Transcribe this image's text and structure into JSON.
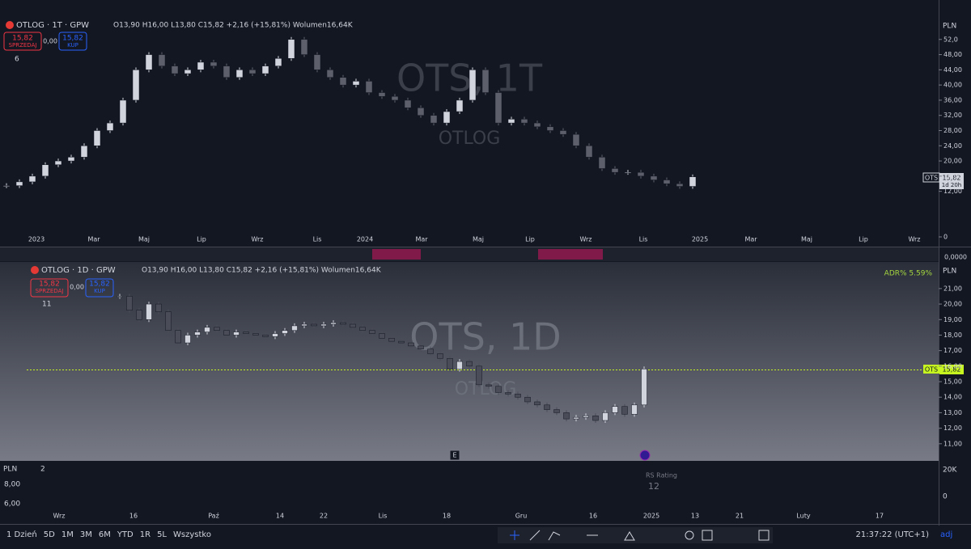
{
  "ui": {
    "top": {
      "symbol": "OTLOG · 1T · GPW",
      "ohlc": "O13,90 H16,00 L13,80 C15,82 +2,16 (+15,81%) Wolumen16,64K",
      "sell_price": "15,82",
      "sell_label": "SPRZEDAJ",
      "spread": "0,00",
      "buy_price": "15,82",
      "buy_label": "KUP",
      "indicators": "6",
      "watermark": "OTS, 1T",
      "watermark_sub": "OTLOG",
      "currency": "PLN",
      "last_symbol": "OTS",
      "last_price": "15,82",
      "countdown": "1d 20h",
      "strip_value": "0,0000",
      "x_labels": [
        "2023",
        "Mar",
        "Maj",
        "Lip",
        "Wrz",
        "Lis",
        "2024",
        "Mar",
        "Maj",
        "Lip",
        "Wrz",
        "Lis",
        "2025",
        "Mar",
        "Maj",
        "Lip",
        "Wrz"
      ]
    },
    "bottom": {
      "symbol": "OTLOG · 1D · GPW",
      "ohlc": "O13,90 H16,00 L13,80 C15,82 +2,16 (+15,81%) Wolumen16,64K",
      "sell_price": "15,82",
      "sell_label": "SPRZEDAJ",
      "spread": "0,00",
      "buy_price": "15,82",
      "buy_label": "KUP",
      "indicators": "11",
      "watermark": "OTS, 1D",
      "watermark_sub": "OTLOG",
      "currency": "PLN",
      "adr": "ADR% 5.59%",
      "last_symbol": "OTS",
      "last_price": "15,82",
      "earnings": "E",
      "x_labels": [
        "Wrz",
        "16",
        "Paź",
        "14",
        "22",
        "Lis",
        "18",
        "Gru",
        "16",
        "2025",
        "13",
        "21",
        "Luty",
        "17"
      ]
    },
    "lower": {
      "currency": "PLN",
      "count": "2",
      "rs_title": "RS Rating",
      "rs_value": "12",
      "vol_top": "20K",
      "vol_zero": "0",
      "left_top": "8,00",
      "left_bottom": "6,00"
    },
    "toolbar": {
      "ranges": [
        "1 Dzień",
        "5D",
        "1M",
        "3M",
        "6M",
        "YTD",
        "1R",
        "5L",
        "Wszystko"
      ],
      "clock": "21:37:22 (UTC+1)",
      "adj": "adj"
    }
  },
  "chart_data": [
    {
      "type": "candlestick",
      "up_color": "#d1d4dc",
      "down_color": "#5d606b",
      "values": [
        13.5,
        14.5,
        16,
        19,
        20,
        21,
        24,
        28,
        30,
        36,
        44,
        48,
        45,
        43,
        44,
        46,
        45,
        42,
        44,
        43,
        45,
        47,
        52,
        48,
        44,
        42,
        40,
        41,
        38,
        37,
        36,
        34,
        32,
        30,
        33,
        36,
        44,
        38,
        30,
        31,
        30,
        29,
        28,
        27,
        24,
        21,
        18,
        17,
        17,
        16,
        15,
        14,
        13.3,
        15.82
      ],
      "ylim": [
        0,
        57.7
      ],
      "yticks": [
        {
          "value": 52,
          "label": "52,0"
        },
        {
          "value": 48,
          "label": "48,00"
        },
        {
          "value": 44,
          "label": "44,00"
        },
        {
          "value": 40,
          "label": "40,00"
        },
        {
          "value": 36,
          "label": "36,00"
        },
        {
          "value": 32,
          "label": "32,00"
        },
        {
          "value": 28,
          "label": "28,00"
        },
        {
          "value": 24,
          "label": "24,00"
        },
        {
          "value": 20,
          "label": "20,00"
        },
        {
          "value": 16,
          "label": "16,00"
        },
        {
          "value": 12,
          "label": "12,00"
        },
        0
      ]
    },
    {
      "type": "candlestick",
      "up_color": "#d1d4dc",
      "down_color": "#4a4d57",
      "values": [
        20.5,
        19.6,
        19.0,
        20.0,
        19.5,
        18.3,
        17.5,
        18.0,
        18.2,
        18.5,
        18.3,
        18.0,
        18.2,
        18.1,
        18.0,
        17.9,
        18.1,
        18.3,
        18.6,
        18.7,
        18.6,
        18.7,
        18.8,
        18.7,
        18.5,
        18.3,
        18.1,
        17.8,
        17.6,
        17.5,
        17.3,
        17.1,
        16.8,
        16.5,
        15.8,
        16.3,
        16.0,
        14.8,
        14.7,
        14.3,
        14.2,
        14.0,
        13.7,
        13.5,
        13.2,
        13.0,
        12.6,
        12.7,
        12.8,
        12.5,
        13.0,
        13.4,
        12.9,
        13.5,
        15.82
      ],
      "ylim": [
        10,
        22.4
      ],
      "yticks": [
        {
          "value": 21,
          "label": "21,00"
        },
        {
          "value": 20,
          "label": "20,00"
        },
        {
          "value": 19,
          "label": "19,00"
        },
        {
          "value": 18,
          "label": "18,00"
        },
        {
          "value": 17,
          "label": "17,00"
        },
        {
          "value": 16,
          "label": "16,00"
        },
        {
          "value": 15,
          "label": "15,00"
        },
        {
          "value": 14,
          "label": "14,00"
        },
        {
          "value": 13,
          "label": "13,00"
        },
        {
          "value": 12,
          "label": "12,00"
        },
        {
          "value": 11,
          "label": "11,00"
        }
      ]
    }
  ]
}
